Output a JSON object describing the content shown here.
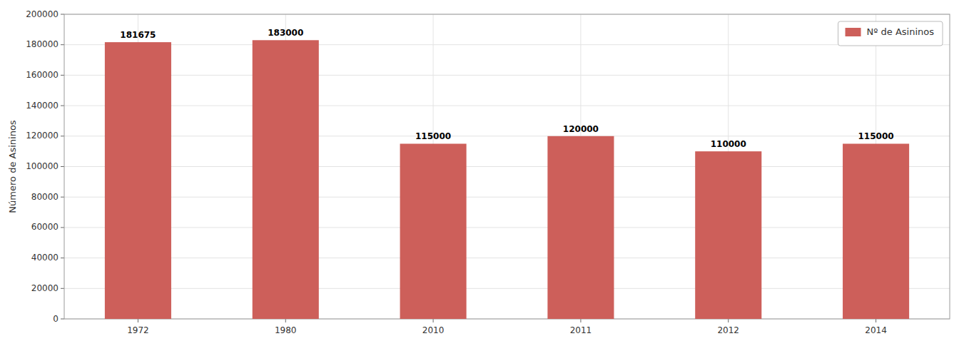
{
  "chart_data": {
    "type": "bar",
    "ylabel": "Número de Asininos",
    "categories": [
      "1972",
      "1980",
      "2010",
      "2011",
      "2012",
      "2014"
    ],
    "series": [
      {
        "name": "Nº de Asininos",
        "color": "#cd5f5a",
        "values": [
          181675,
          183000,
          115000,
          120000,
          110000,
          115000
        ]
      }
    ],
    "ylim": [
      0,
      200000
    ],
    "yticks": [
      0,
      20000,
      40000,
      60000,
      80000,
      100000,
      120000,
      140000,
      160000,
      180000,
      200000
    ],
    "grid": true,
    "legend": "upper right",
    "data_labels": true
  }
}
